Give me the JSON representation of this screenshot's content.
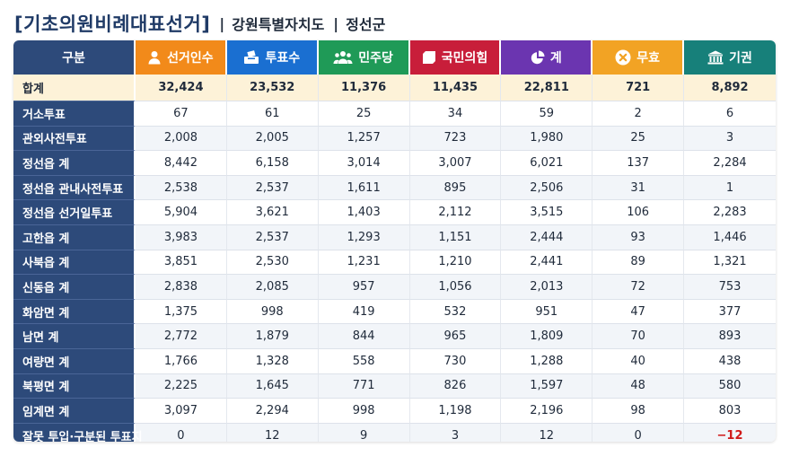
{
  "title": {
    "main": "[기초의원비례대표선거]",
    "sep1": "|",
    "region": "강원특별자치도",
    "sep2": "|",
    "district": "정선군"
  },
  "colors": {
    "col_division": "#2d4a7a",
    "col_electors": "#f28a1a",
    "col_votes": "#1a6fd1",
    "col_democratic": "#1f9a57",
    "col_ppp": "#c81e3a",
    "col_total": "#6b35b0",
    "col_invalid": "#f2a324",
    "col_abstain": "#17807a",
    "negative": "#d01818"
  },
  "headers": [
    {
      "key": "division",
      "label": "구분",
      "icon": ""
    },
    {
      "key": "electors",
      "label": "선거인수",
      "icon": "person-icon"
    },
    {
      "key": "votes",
      "label": "투표수",
      "icon": "ballot-box-icon"
    },
    {
      "key": "democratic",
      "label": "민주당",
      "icon": "people-group-icon"
    },
    {
      "key": "ppp",
      "label": "국민의힘",
      "icon": "square-icon"
    },
    {
      "key": "total",
      "label": "계",
      "icon": "pie-chart-icon"
    },
    {
      "key": "invalid",
      "label": "무효",
      "icon": "x-circle-icon"
    },
    {
      "key": "abstain",
      "label": "기권",
      "icon": "building-icon"
    }
  ],
  "rows": [
    {
      "label": "합계",
      "values": [
        "32,424",
        "23,532",
        "11,376",
        "11,435",
        "22,811",
        "721",
        "8,892"
      ]
    },
    {
      "label": "거소투표",
      "values": [
        "67",
        "61",
        "25",
        "34",
        "59",
        "2",
        "6"
      ]
    },
    {
      "label": "관외사전투표",
      "values": [
        "2,008",
        "2,005",
        "1,257",
        "723",
        "1,980",
        "25",
        "3"
      ]
    },
    {
      "label": "정선읍 계",
      "values": [
        "8,442",
        "6,158",
        "3,014",
        "3,007",
        "6,021",
        "137",
        "2,284"
      ]
    },
    {
      "label": "정선읍 관내사전투표",
      "values": [
        "2,538",
        "2,537",
        "1,611",
        "895",
        "2,506",
        "31",
        "1"
      ]
    },
    {
      "label": "정선읍 선거일투표",
      "values": [
        "5,904",
        "3,621",
        "1,403",
        "2,112",
        "3,515",
        "106",
        "2,283"
      ]
    },
    {
      "label": "고한읍 계",
      "values": [
        "3,983",
        "2,537",
        "1,293",
        "1,151",
        "2,444",
        "93",
        "1,446"
      ]
    },
    {
      "label": "사북읍 계",
      "values": [
        "3,851",
        "2,530",
        "1,231",
        "1,210",
        "2,441",
        "89",
        "1,321"
      ]
    },
    {
      "label": "신동읍 계",
      "values": [
        "2,838",
        "2,085",
        "957",
        "1,056",
        "2,013",
        "72",
        "753"
      ]
    },
    {
      "label": "화암면 계",
      "values": [
        "1,375",
        "998",
        "419",
        "532",
        "951",
        "47",
        "377"
      ]
    },
    {
      "label": "남면 계",
      "values": [
        "2,772",
        "1,879",
        "844",
        "965",
        "1,809",
        "70",
        "893"
      ]
    },
    {
      "label": "여량면 계",
      "values": [
        "1,766",
        "1,328",
        "558",
        "730",
        "1,288",
        "40",
        "438"
      ]
    },
    {
      "label": "북평면 계",
      "values": [
        "2,225",
        "1,645",
        "771",
        "826",
        "1,597",
        "48",
        "580"
      ]
    },
    {
      "label": "임계면 계",
      "values": [
        "3,097",
        "2,294",
        "998",
        "1,198",
        "2,196",
        "98",
        "803"
      ]
    },
    {
      "label": "잘못 투입·구분된 투표지",
      "values": [
        "0",
        "12",
        "9",
        "3",
        "12",
        "0",
        "−12"
      ]
    }
  ]
}
